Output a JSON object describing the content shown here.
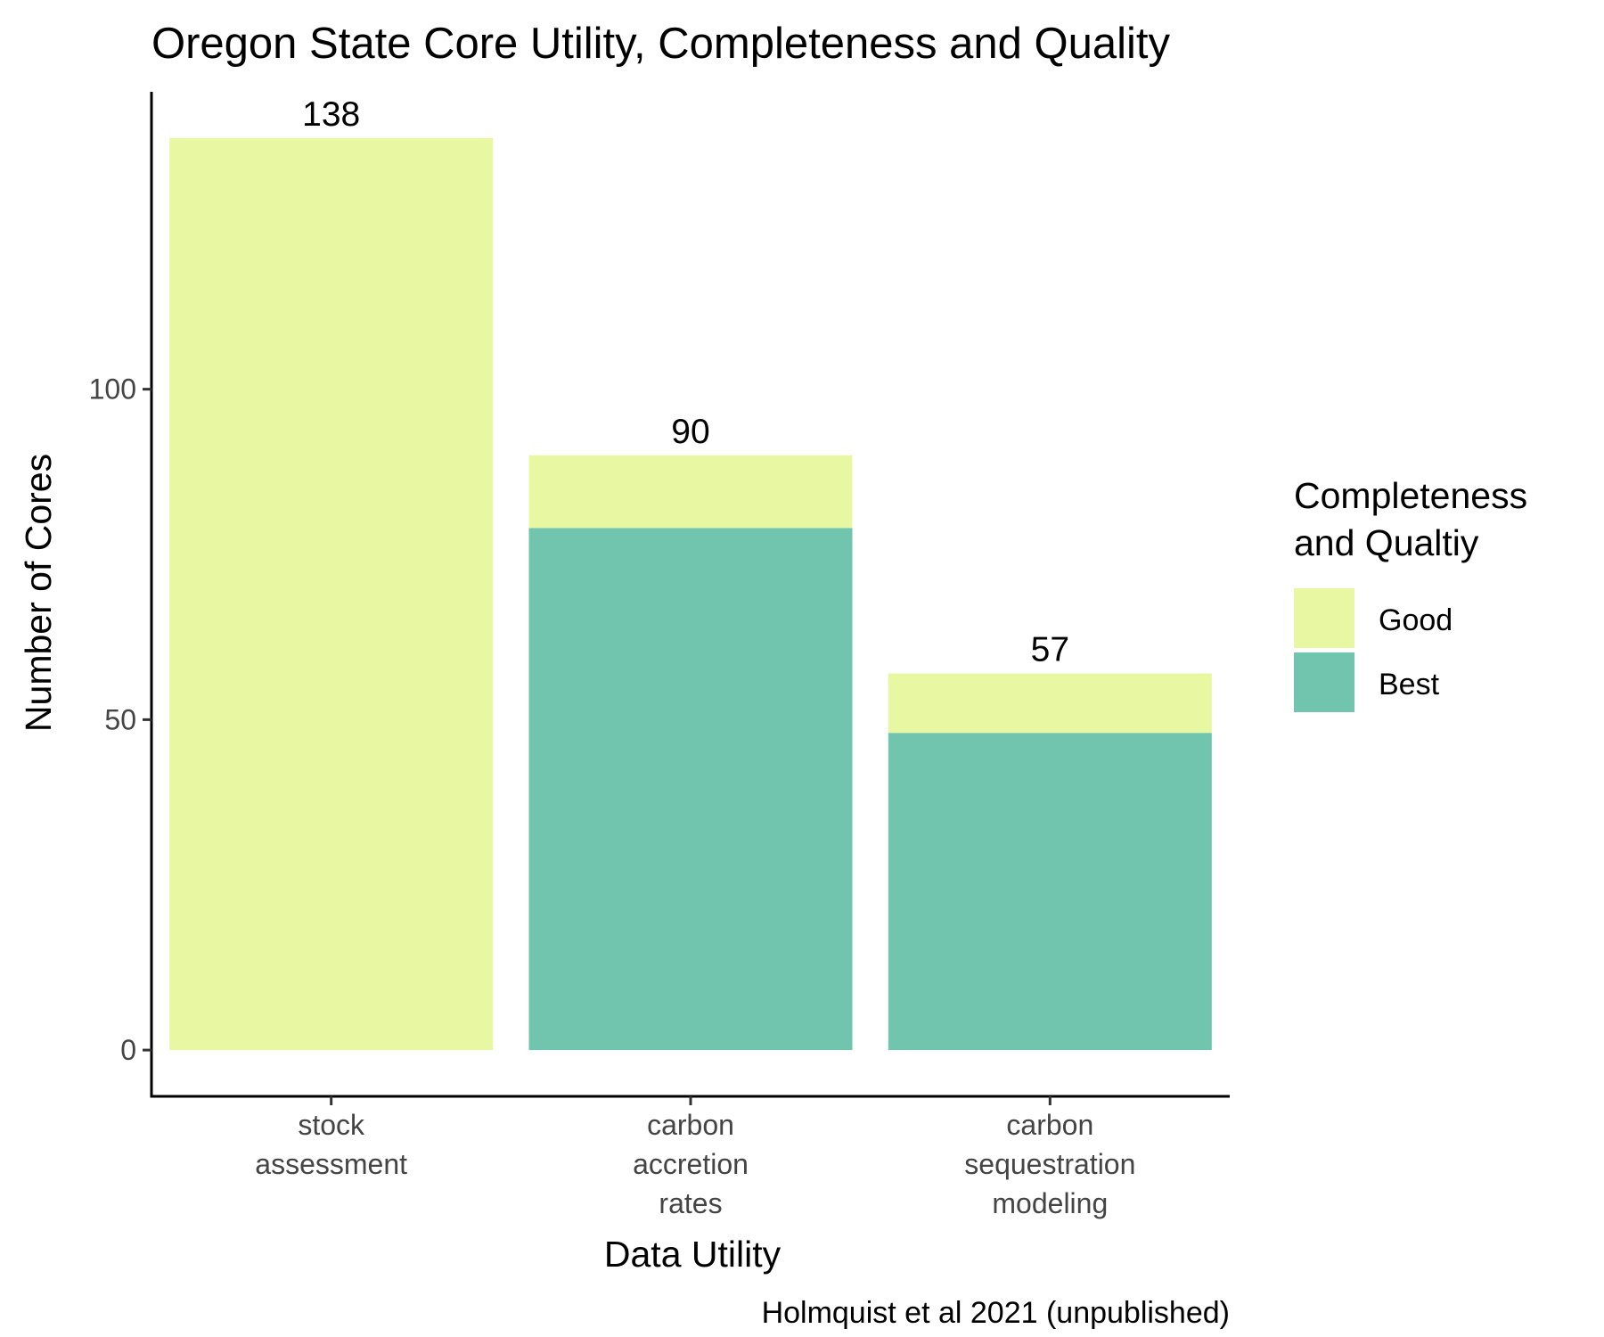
{
  "chart_data": {
    "type": "bar",
    "stacked": true,
    "title": "Oregon State Core Utility, Completeness and Quality",
    "xlabel": "Data Utility",
    "ylabel": "Number of Cores",
    "caption": "Holmquist et al 2021 (unpublished)",
    "categories": [
      [
        "stock",
        "assessment"
      ],
      [
        "carbon",
        "accretion",
        "rates"
      ],
      [
        "carbon",
        "sequestration",
        "modeling"
      ]
    ],
    "series": [
      {
        "name": "Best",
        "color": "#71c4ad",
        "values": [
          0,
          79,
          48
        ]
      },
      {
        "name": "Good",
        "color": "#e8f8a2",
        "values": [
          138,
          11,
          9
        ]
      }
    ],
    "totals": [
      "138",
      "90",
      "57"
    ],
    "ylim": [
      -7,
      145
    ],
    "yticks": [
      0,
      50,
      100
    ],
    "legend": {
      "title": [
        "Completeness",
        "and Qualtiy"
      ],
      "entries": [
        {
          "label": "Good",
          "color": "#e8f8a2"
        },
        {
          "label": "Best",
          "color": "#71c4ad"
        }
      ],
      "position": "right"
    }
  }
}
